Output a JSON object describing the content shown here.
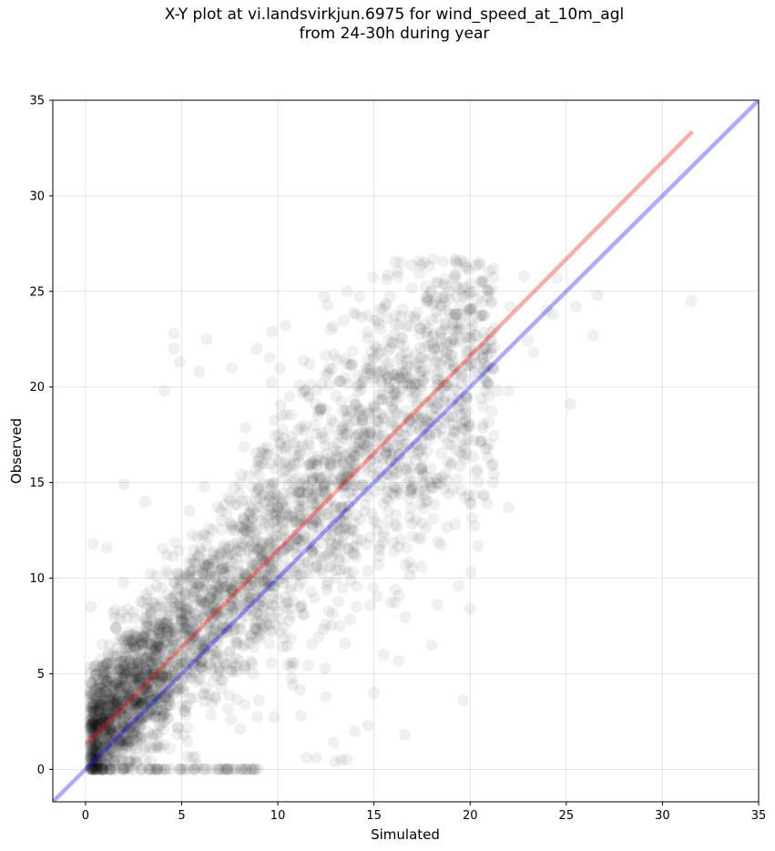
{
  "chart_data": {
    "type": "scatter",
    "title_line1": "X-Y plot at vi.landsvirkjun.6975 for wind_speed_at_10m_agl",
    "title_line2": "from 24-30h during year",
    "xlabel": "Simulated",
    "ylabel": "Observed",
    "xlim": [
      -1.7,
      35
    ],
    "ylim": [
      -1.7,
      35
    ],
    "xticks": [
      0,
      5,
      10,
      15,
      20,
      25,
      30,
      35
    ],
    "yticks": [
      0,
      5,
      10,
      15,
      20,
      25,
      30,
      35
    ],
    "grid": true,
    "point_color": "#000000",
    "point_alpha": 0.06,
    "identity_line": {
      "color": "#0000ff",
      "from": [
        -1.7,
        -1.7
      ],
      "to": [
        35,
        35
      ]
    },
    "fit_line": {
      "color": "#ff0000",
      "from": [
        0.1,
        1.4
      ],
      "to": [
        31.5,
        33.3
      ]
    },
    "outliers": [
      [
        31.5,
        24.5
      ],
      [
        26.6,
        24.8
      ],
      [
        26.4,
        22.7
      ],
      [
        25.2,
        19.1
      ],
      [
        24.5,
        25.7
      ],
      [
        24.0,
        24.0
      ],
      [
        23.3,
        21.8
      ],
      [
        22.8,
        25.8
      ],
      [
        22.1,
        24.2
      ],
      [
        22.0,
        19.8
      ],
      [
        21.4,
        19.8
      ],
      [
        20.8,
        19.8
      ],
      [
        22.0,
        13.7
      ],
      [
        20.9,
        13.9
      ],
      [
        20.0,
        8.4
      ],
      [
        19.4,
        9.6
      ],
      [
        18.0,
        6.5
      ],
      [
        18.3,
        8.6
      ],
      [
        16.6,
        1.8
      ],
      [
        15.5,
        6.0
      ],
      [
        14.7,
        2.3
      ],
      [
        14.0,
        2.0
      ],
      [
        13.6,
        0.5
      ],
      [
        13.3,
        0.5
      ],
      [
        12.9,
        1.4
      ],
      [
        12.0,
        0.6
      ],
      [
        11.5,
        0.6
      ],
      [
        6.3,
        22.5
      ],
      [
        5.9,
        20.8
      ],
      [
        4.6,
        22.8
      ],
      [
        4.6,
        22.0
      ],
      [
        4.9,
        21.3
      ],
      [
        4.1,
        19.8
      ],
      [
        7.6,
        21.0
      ],
      [
        8.9,
        22.0
      ],
      [
        10.4,
        23.2
      ],
      [
        13.6,
        25.0
      ],
      [
        16.4,
        26.5
      ],
      [
        17.6,
        26.5
      ],
      [
        19.5,
        26.6
      ],
      [
        20.5,
        26.4
      ],
      [
        21.2,
        26.2
      ],
      [
        0.3,
        8.5
      ],
      [
        0.4,
        11.8
      ],
      [
        1.1,
        11.6
      ],
      [
        2.0,
        14.9
      ],
      [
        3.1,
        14.0
      ],
      [
        8.6,
        0.0
      ],
      [
        9.0,
        0.0
      ],
      [
        0.6,
        0.0
      ],
      [
        1.9,
        0.0
      ],
      [
        3.5,
        0.0
      ],
      [
        5.2,
        0.0
      ],
      [
        7.1,
        0.0
      ],
      [
        11.2,
        2.8
      ],
      [
        12.5,
        3.8
      ],
      [
        15.0,
        4.0
      ],
      [
        16.1,
        9.4
      ],
      [
        17.3,
        12.1
      ],
      [
        18.9,
        14.4
      ],
      [
        19.8,
        16.5
      ],
      [
        21.0,
        17.0
      ],
      [
        23.0,
        22.4
      ],
      [
        24.3,
        23.8
      ],
      [
        25.5,
        24.2
      ],
      [
        9.7,
        22.9
      ]
    ]
  }
}
